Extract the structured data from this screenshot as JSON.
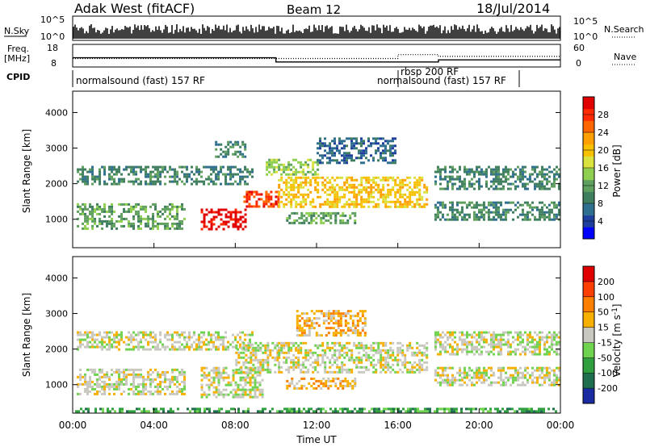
{
  "header": {
    "station": "Adak West (fitACF)",
    "beam": "Beam 12",
    "date": "18/Jul/2014"
  },
  "noise_panel": {
    "left_label": "N.Sky",
    "right_label": "N.Search",
    "left_ticks": [
      "10^5",
      "10^0"
    ],
    "right_ticks": [
      "10^5",
      "10^0"
    ],
    "series": [
      {
        "name": "N.Sky",
        "style": "solid"
      },
      {
        "name": "N.Search",
        "style": "dotted"
      }
    ]
  },
  "freq_panel": {
    "left_label_1": "Freq.",
    "left_label_2": "[MHz]",
    "right_label": "Nave",
    "left_ticks": [
      "18",
      "8"
    ],
    "right_ticks": [
      "60",
      "0"
    ],
    "series": [
      {
        "name": "Freq.",
        "style": "solid",
        "x_hours": [
          0,
          10,
          10,
          18,
          18,
          24
        ],
        "values": [
          12,
          12,
          10,
          10,
          11,
          11
        ]
      },
      {
        "name": "Nave",
        "style": "dotted",
        "x_hours": [
          0,
          16,
          16,
          18,
          18,
          24
        ],
        "values": [
          22,
          22,
          33,
          33,
          28,
          28
        ]
      }
    ]
  },
  "cpid": {
    "label": "CPID",
    "entries": [
      {
        "text": "normalsound (fast) 157 RF",
        "start_hour": 0,
        "end_hour": 16
      },
      {
        "text": "rbsp 200 RF",
        "start_hour": 16,
        "end_hour": 18
      },
      {
        "text": "normalsound (fast) 157 RF",
        "start_hour": 16,
        "end_hour": 22
      }
    ]
  },
  "power_panel": {
    "ylabel": "Slant Range [km]",
    "yticks": [
      "4000",
      "3000",
      "2000",
      "1000"
    ],
    "colorbar": {
      "label": "Power [dB]",
      "ticks": [
        "28",
        "24",
        "20",
        "16",
        "12",
        "8",
        "4"
      ],
      "colors": [
        "#0000ff",
        "#1f3f9f",
        "#2f6f8f",
        "#3f7f5f",
        "#5fa05f",
        "#8fcf4f",
        "#d9e23f",
        "#f7c000",
        "#ff9f00",
        "#ff6600",
        "#ff2a00",
        "#e00000"
      ]
    }
  },
  "velocity_panel": {
    "ylabel": "Slant Range [km]",
    "yticks": [
      "4000",
      "3000",
      "2000",
      "1000"
    ],
    "colorbar": {
      "label": "Velocity [m s",
      "label_sup": "-1",
      "label_close": "]",
      "ticks": [
        "200",
        "100",
        "50",
        "15",
        "-15",
        "-50",
        "-100",
        "-200"
      ],
      "colors": [
        "#1a2aa0",
        "#1f6f4f",
        "#2f9f3f",
        "#6fd34f",
        "#c8c8c0",
        "#f7b000",
        "#ff7f00",
        "#ff3f00",
        "#e00000"
      ]
    }
  },
  "chart_data": {
    "type": "heatmap",
    "xlabel": "Time UT",
    "xticks": [
      "00:00",
      "04:00",
      "08:00",
      "12:00",
      "16:00",
      "20:00",
      "00:00"
    ],
    "x_hours": [
      0,
      4,
      8,
      12,
      16,
      20,
      24
    ],
    "xlim_hours": [
      0,
      24
    ],
    "ylim_km": [
      200,
      4600
    ],
    "power_regions": [
      {
        "t0": 0.2,
        "t1": 5.6,
        "r0": 650,
        "r1": 1450,
        "level": 4
      },
      {
        "t0": 0.2,
        "t1": 9.0,
        "r0": 1900,
        "r1": 2500,
        "level": 3
      },
      {
        "t0": 6.3,
        "t1": 8.6,
        "r0": 650,
        "r1": 1300,
        "level": 11
      },
      {
        "t0": 8.4,
        "t1": 10.2,
        "r0": 1300,
        "r1": 1800,
        "level": 10
      },
      {
        "t0": 10.1,
        "t1": 17.5,
        "r0": 1300,
        "r1": 2200,
        "level": 7
      },
      {
        "t0": 9.5,
        "t1": 12.2,
        "r0": 2200,
        "r1": 2700,
        "level": 5
      },
      {
        "t0": 10.5,
        "t1": 14.0,
        "r0": 800,
        "r1": 1200,
        "level": 4
      },
      {
        "t0": 17.8,
        "t1": 24.0,
        "r0": 900,
        "r1": 1500,
        "level": 3
      },
      {
        "t0": 17.8,
        "t1": 24.0,
        "r0": 1800,
        "r1": 2500,
        "level": 3
      },
      {
        "t0": 7.0,
        "t1": 8.6,
        "r0": 2700,
        "r1": 3200,
        "level": 3
      },
      {
        "t0": 12.0,
        "t1": 16.0,
        "r0": 2500,
        "r1": 3300,
        "level": 2
      }
    ],
    "velocity_regions": [
      {
        "t0": 0.2,
        "t1": 5.6,
        "r0": 650,
        "r1": 1450,
        "level": 4
      },
      {
        "t0": 0.2,
        "t1": 9.0,
        "r0": 1900,
        "r1": 2500,
        "level": 4
      },
      {
        "t0": 6.3,
        "t1": 9.5,
        "r0": 600,
        "r1": 1500,
        "level": 4
      },
      {
        "t0": 8.0,
        "t1": 10.2,
        "r0": 1300,
        "r1": 2200,
        "level": 4
      },
      {
        "t0": 10.1,
        "t1": 17.5,
        "r0": 1300,
        "r1": 2200,
        "level": 4
      },
      {
        "t0": 10.5,
        "t1": 14.0,
        "r0": 800,
        "r1": 1200,
        "level": 5
      },
      {
        "t0": 17.8,
        "t1": 24.0,
        "r0": 900,
        "r1": 1500,
        "level": 4
      },
      {
        "t0": 17.8,
        "t1": 24.0,
        "r0": 1800,
        "r1": 2500,
        "level": 4
      },
      {
        "t0": 11.0,
        "t1": 14.5,
        "r0": 2300,
        "r1": 3100,
        "level": 5
      },
      {
        "t0": 0.0,
        "t1": 24.0,
        "r0": 200,
        "r1": 350,
        "level": 2
      }
    ]
  }
}
